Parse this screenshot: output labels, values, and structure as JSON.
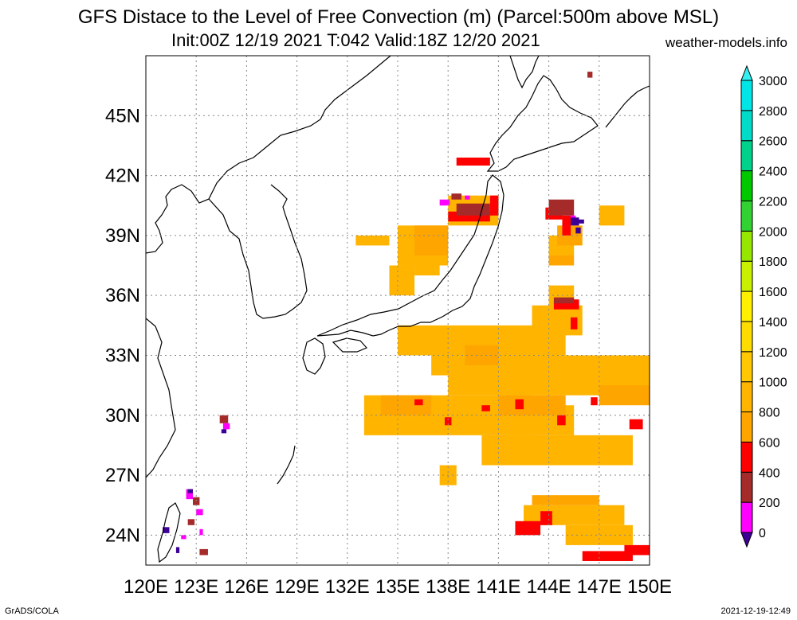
{
  "title_line1": "GFS Distace to the Level of Free Convection (m) (Parcel:500m above MSL)",
  "title_line2": "Init:00Z 12/19 2021 T:042 Valid:18Z 12/20 2021",
  "site": "weather-models.info",
  "footer_left": "GrADS/COLA",
  "footer_right": "2021-12-19-12:49",
  "lon_labels": [
    "120E",
    "123E",
    "126E",
    "129E",
    "132E",
    "135E",
    "138E",
    "141E",
    "144E",
    "147E",
    "150E"
  ],
  "lat_labels": [
    "45N",
    "42N",
    "39N",
    "36N",
    "33N",
    "30N",
    "27N",
    "24N"
  ],
  "lon_values": [
    120,
    123,
    126,
    129,
    132,
    135,
    138,
    141,
    144,
    147,
    150
  ],
  "lat_values": [
    45,
    42,
    39,
    36,
    33,
    30,
    27,
    24
  ],
  "map_extent": {
    "lon": [
      120,
      150
    ],
    "lat": [
      22.5,
      48
    ]
  },
  "colorbar": {
    "labels": [
      "0",
      "200",
      "400",
      "600",
      "800",
      "1000",
      "1200",
      "1400",
      "1600",
      "1800",
      "2000",
      "2200",
      "2400",
      "2600",
      "2800",
      "3000"
    ],
    "colors": [
      "#3c0096",
      "#ff00ff",
      "#a52a2a",
      "#ff0000",
      "#ffa500",
      "#ffb400",
      "#ffc800",
      "#ffdc00",
      "#fff000",
      "#c8f000",
      "#96e600",
      "#32d232",
      "#00c800",
      "#00d28c",
      "#00dcc8",
      "#00e6e6",
      "#32f0f0"
    ]
  },
  "regions": [
    {
      "level": 1000,
      "color": "#ffb400",
      "cells": [
        [
          138,
          39.5,
          3,
          1.5
        ],
        [
          135,
          37.5,
          3,
          2
        ],
        [
          134.5,
          36,
          1.5,
          1.5
        ],
        [
          136,
          37,
          1.5,
          1
        ],
        [
          132.5,
          38.5,
          2,
          0.5
        ],
        [
          144,
          38,
          1.5,
          1
        ],
        [
          135,
          33,
          10,
          1.5
        ],
        [
          138,
          31,
          12,
          2
        ],
        [
          133,
          29,
          10,
          2
        ],
        [
          140,
          27.5,
          9,
          1.5
        ],
        [
          143,
          34,
          3,
          1.5
        ],
        [
          144,
          35,
          1.5,
          1.5
        ],
        [
          146,
          31.5,
          3,
          1.5
        ],
        [
          137,
          32,
          3,
          1
        ],
        [
          142.5,
          24.5,
          6,
          1
        ],
        [
          145,
          23.5,
          4,
          1
        ],
        [
          141.5,
          29,
          4,
          1.5
        ],
        [
          137.5,
          26.5,
          1,
          1
        ],
        [
          147,
          39.5,
          1.5,
          1
        ]
      ]
    },
    {
      "level": 800,
      "color": "#ffa500",
      "cells": [
        [
          136,
          38,
          2,
          1.5
        ],
        [
          144,
          37.5,
          1.5,
          0.5
        ],
        [
          144.5,
          38.5,
          1.5,
          1
        ],
        [
          141,
          30,
          4,
          1
        ],
        [
          139,
          32.5,
          2,
          1
        ],
        [
          147,
          30.5,
          3,
          1
        ],
        [
          143,
          25.5,
          4,
          0.5
        ],
        [
          134,
          30,
          3,
          1
        ]
      ]
    },
    {
      "level": 600,
      "color": "#ff0000",
      "cells": [
        [
          138,
          39.7,
          2.5,
          0.5
        ],
        [
          140.5,
          40,
          0.5,
          1
        ],
        [
          143.8,
          39.8,
          1,
          0.6
        ],
        [
          144.8,
          39,
          0.5,
          1
        ],
        [
          144.3,
          35.3,
          1.5,
          0.5
        ],
        [
          145.3,
          34.3,
          0.4,
          0.6
        ],
        [
          142,
          24,
          1.5,
          0.7
        ],
        [
          143.5,
          24.5,
          0.7,
          0.7
        ],
        [
          146,
          22.7,
          3,
          0.5
        ],
        [
          148.5,
          23,
          1.5,
          0.5
        ],
        [
          140,
          30.2,
          0.5,
          0.3
        ],
        [
          137.8,
          29.5,
          0.4,
          0.4
        ],
        [
          148.8,
          29.3,
          0.8,
          0.5
        ],
        [
          136,
          30.5,
          0.5,
          0.3
        ],
        [
          142,
          30.3,
          0.5,
          0.5
        ],
        [
          144.5,
          29.5,
          0.5,
          0.5
        ],
        [
          146.5,
          30.5,
          0.4,
          0.4
        ],
        [
          138.5,
          42.5,
          2,
          0.4
        ]
      ]
    },
    {
      "level": 400,
      "color": "#a52a2a",
      "cells": [
        [
          138.5,
          40,
          2,
          0.6
        ],
        [
          144,
          40,
          1.5,
          0.8
        ],
        [
          144.3,
          35.6,
          1.2,
          0.3
        ],
        [
          124.4,
          29.6,
          0.5,
          0.4
        ],
        [
          122.8,
          25.5,
          0.4,
          0.4
        ],
        [
          123.2,
          23,
          0.5,
          0.3
        ],
        [
          122.5,
          24.5,
          0.4,
          0.3
        ],
        [
          138.2,
          40.8,
          0.6,
          0.3
        ],
        [
          146.3,
          46.9,
          0.3,
          0.3
        ]
      ]
    },
    {
      "level": 200,
      "color": "#ff00ff",
      "cells": [
        [
          137.5,
          40.5,
          0.6,
          0.3
        ],
        [
          139,
          40.8,
          0.3,
          0.2
        ],
        [
          124.6,
          29.3,
          0.4,
          0.3
        ],
        [
          122.4,
          25.8,
          0.4,
          0.5
        ],
        [
          123,
          25,
          0.4,
          0.3
        ],
        [
          122.1,
          23.8,
          0.3,
          0.2
        ],
        [
          123.2,
          24,
          0.2,
          0.3
        ],
        [
          145.3,
          39.8,
          0.3,
          0.2
        ]
      ]
    },
    {
      "level": 0,
      "color": "#3c0096",
      "cells": [
        [
          145.3,
          39.5,
          0.5,
          0.4
        ],
        [
          145.6,
          39.1,
          0.3,
          0.3
        ],
        [
          124.5,
          29.1,
          0.3,
          0.2
        ],
        [
          121,
          24.1,
          0.4,
          0.3
        ],
        [
          122.5,
          26.1,
          0.3,
          0.2
        ],
        [
          121.8,
          23.1,
          0.2,
          0.3
        ],
        [
          145.8,
          39.6,
          0.3,
          0.2
        ]
      ]
    }
  ]
}
